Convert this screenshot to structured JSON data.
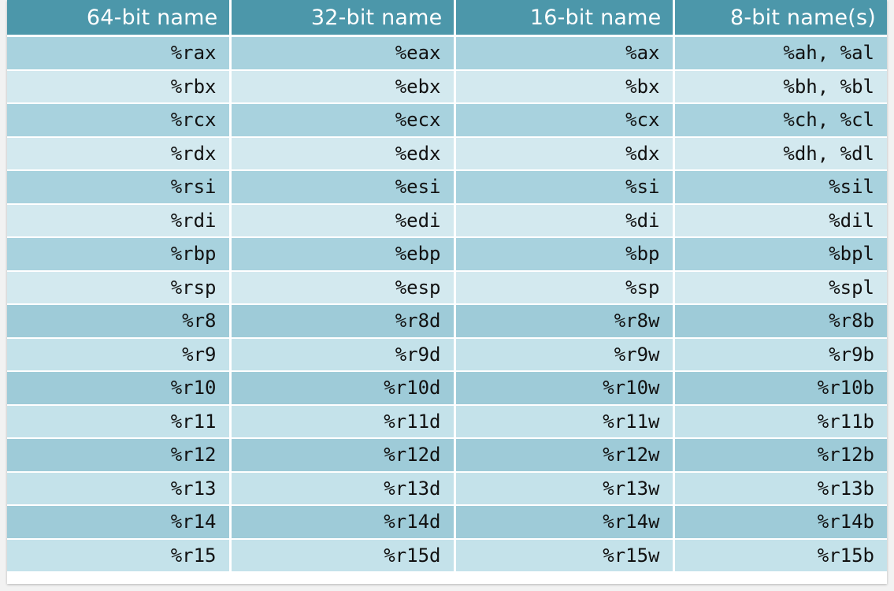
{
  "table": {
    "headers": [
      "64-bit name",
      "32-bit name",
      "16-bit name",
      "8-bit name(s)"
    ],
    "rows": [
      [
        "%rax",
        "%eax",
        "%ax",
        "%ah, %al"
      ],
      [
        "%rbx",
        "%ebx",
        "%bx",
        "%bh, %bl"
      ],
      [
        "%rcx",
        "%ecx",
        "%cx",
        "%ch, %cl"
      ],
      [
        "%rdx",
        "%edx",
        "%dx",
        "%dh, %dl"
      ],
      [
        "%rsi",
        "%esi",
        "%si",
        "%sil"
      ],
      [
        "%rdi",
        "%edi",
        "%di",
        "%dil"
      ],
      [
        "%rbp",
        "%ebp",
        "%bp",
        "%bpl"
      ],
      [
        "%rsp",
        "%esp",
        "%sp",
        "%spl"
      ],
      [
        "%r8",
        "%r8d",
        "%r8w",
        "%r8b"
      ],
      [
        "%r9",
        "%r9d",
        "%r9w",
        "%r9b"
      ],
      [
        "%r10",
        "%r10d",
        "%r10w",
        "%r10b"
      ],
      [
        "%r11",
        "%r11d",
        "%r11w",
        "%r11b"
      ],
      [
        "%r12",
        "%r12d",
        "%r12w",
        "%r12b"
      ],
      [
        "%r13",
        "%r13d",
        "%r13w",
        "%r13b"
      ],
      [
        "%r14",
        "%r14d",
        "%r14w",
        "%r14b"
      ],
      [
        "%r15",
        "%r15d",
        "%r15w",
        "%r15b"
      ]
    ]
  },
  "colors": {
    "header_bg": "#4c97aa",
    "row_dark": "#a8d2de",
    "row_light": "#d3e9ef"
  }
}
